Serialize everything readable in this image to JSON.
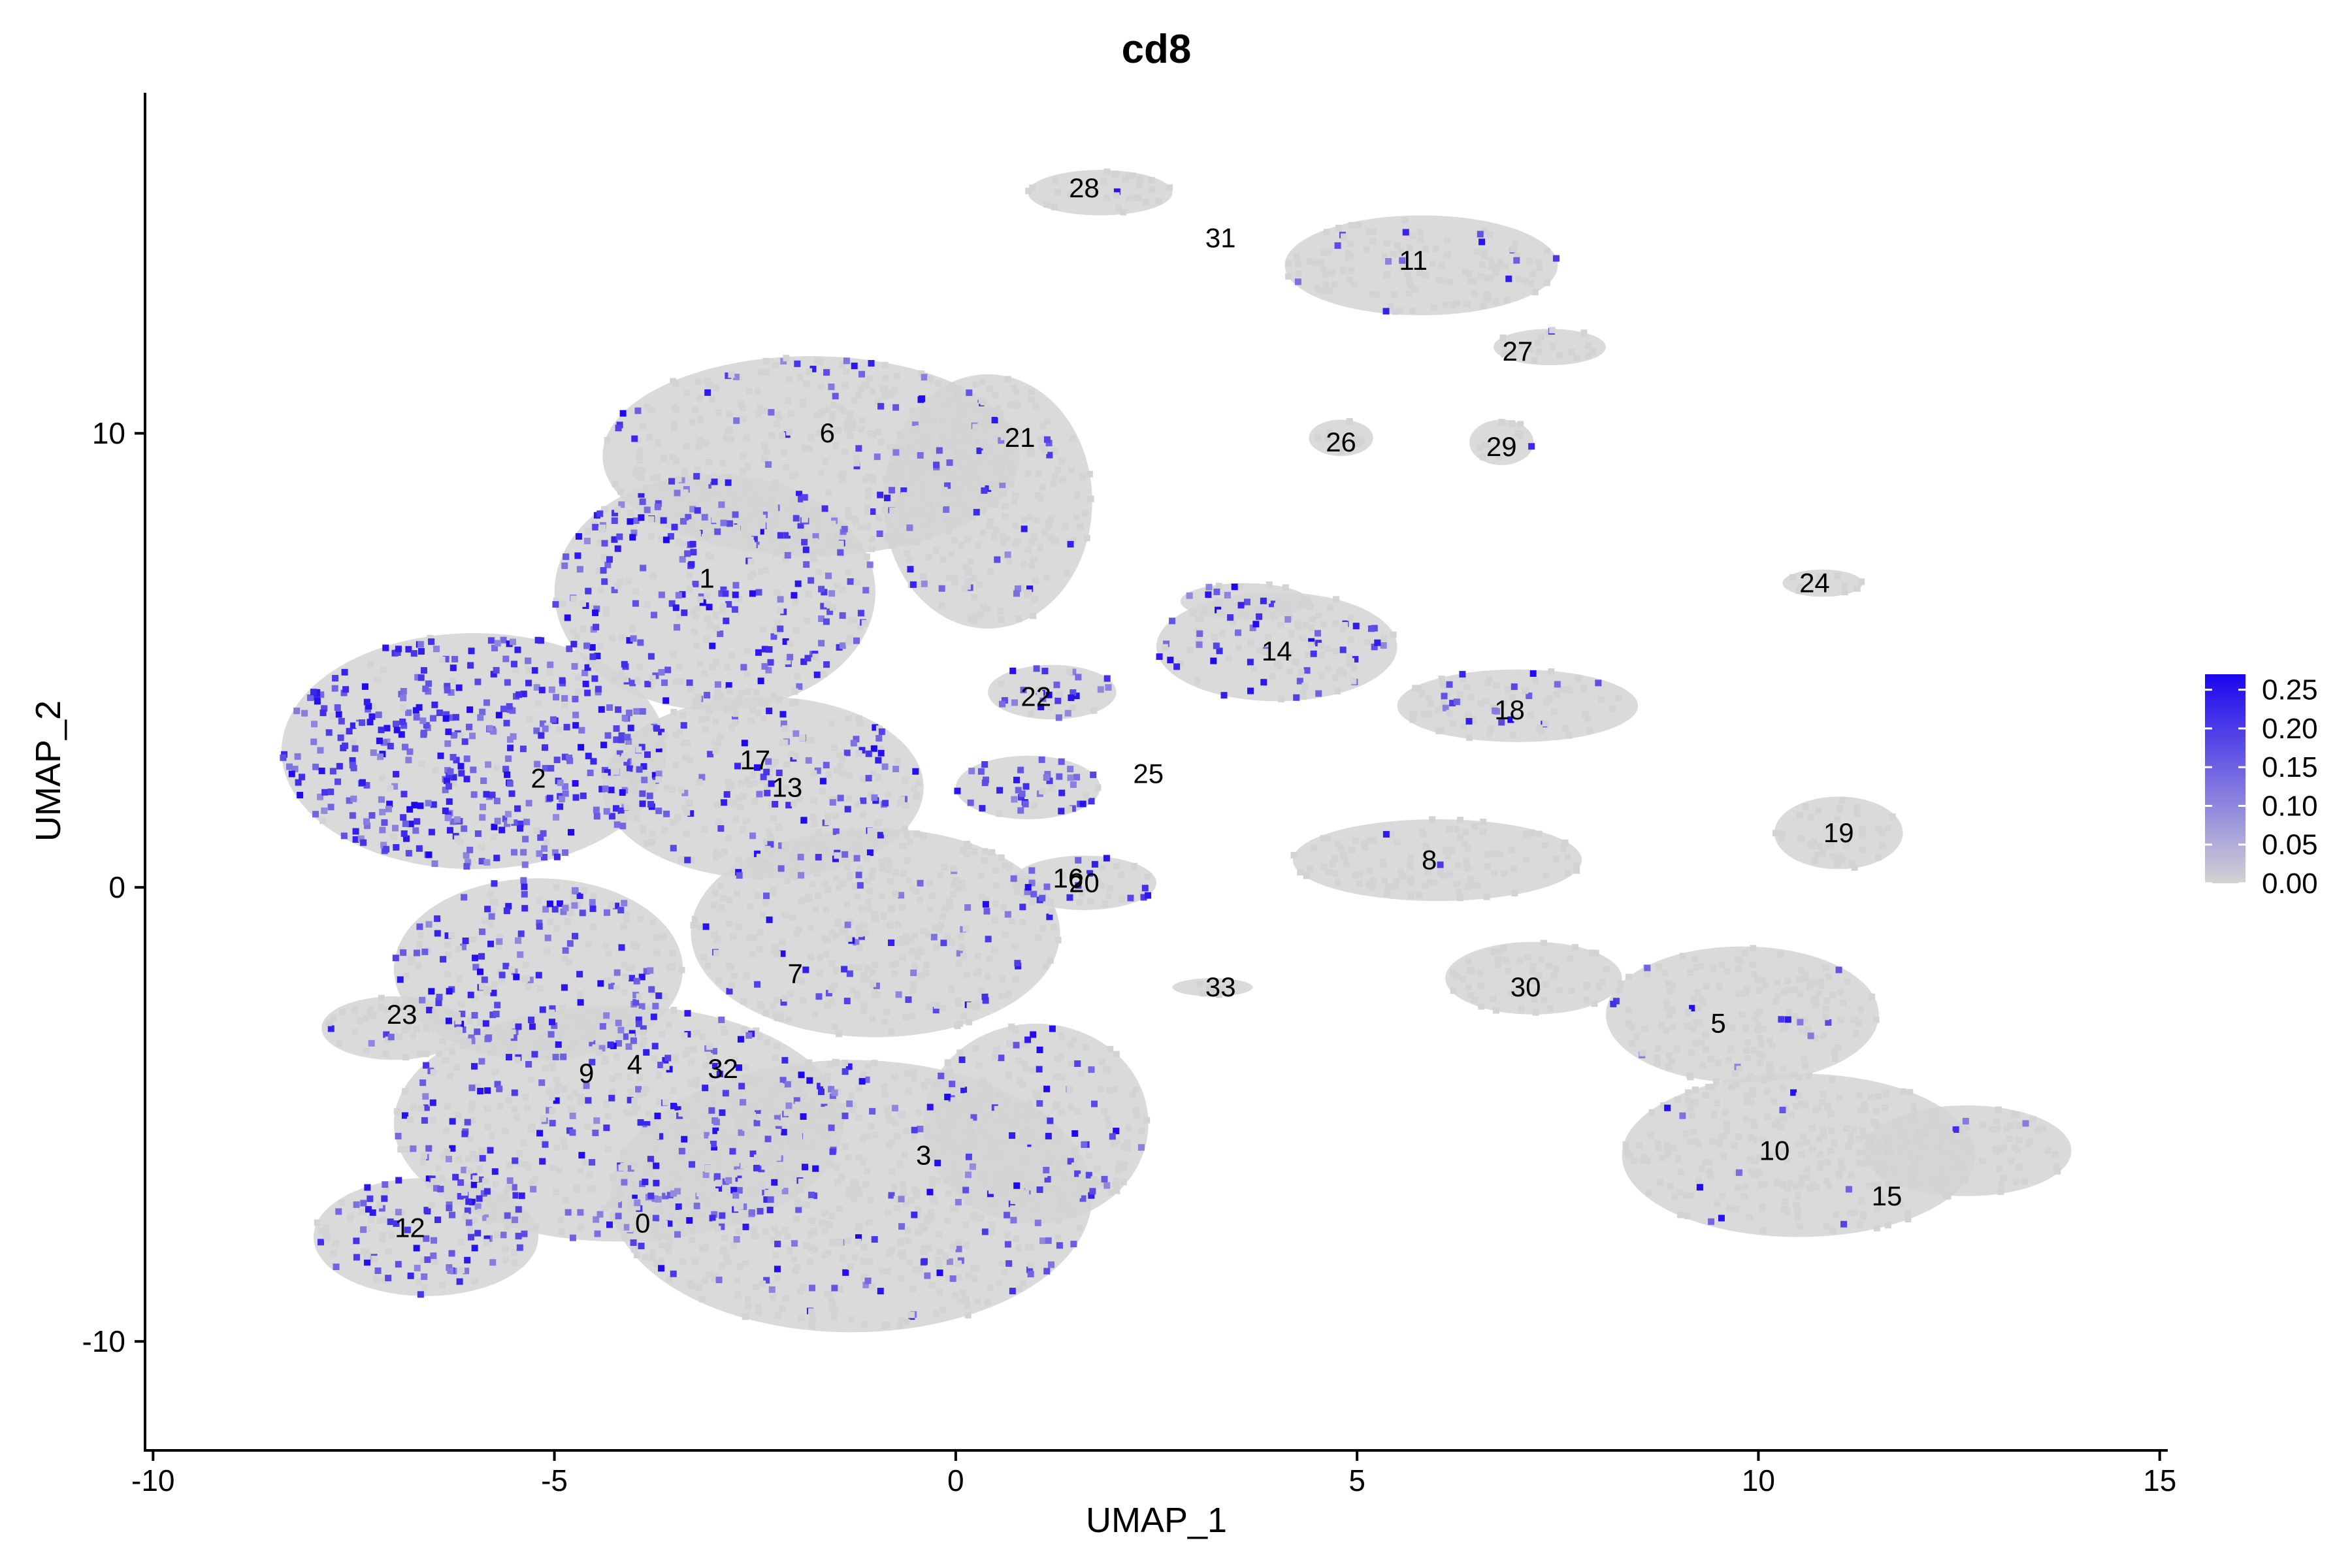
{
  "chart_data": {
    "type": "scatter",
    "title": "cd8",
    "xlabel": "UMAP_1",
    "ylabel": "UMAP_2",
    "xlim": [
      -10.1,
      15.1
    ],
    "ylim": [
      -12.4,
      17.5
    ],
    "xticks": [
      -10,
      -5,
      0,
      5,
      10,
      15
    ],
    "xtick_labels": [
      "-10",
      "-5",
      "0",
      "5",
      "10",
      "15"
    ],
    "yticks": [
      -10,
      0,
      10
    ],
    "ytick_labels": [
      "-10",
      "0",
      "10"
    ],
    "grid": false,
    "legend": {
      "placement": "right",
      "min": 0.0,
      "max": 0.27,
      "ticks": [
        0.25,
        0.2,
        0.15,
        0.1,
        0.05,
        0.0
      ],
      "tick_labels": [
        "0.25",
        "0.20",
        "0.15",
        "0.10",
        "0.05",
        "0.00"
      ],
      "low_color": "#d3d3d3",
      "high_color": "#1c06ef"
    },
    "cluster_labels": [
      {
        "label": "28",
        "x": 1.6,
        "y": 15.4
      },
      {
        "label": "31",
        "x": 3.3,
        "y": 14.3
      },
      {
        "label": "11",
        "x": 5.7,
        "y": 13.8
      },
      {
        "label": "27",
        "x": 7.0,
        "y": 11.8
      },
      {
        "label": "26",
        "x": 4.8,
        "y": 9.8
      },
      {
        "label": "29",
        "x": 6.8,
        "y": 9.7
      },
      {
        "label": "6",
        "x": -1.6,
        "y": 10.0
      },
      {
        "label": "21",
        "x": 0.8,
        "y": 9.9
      },
      {
        "label": "1",
        "x": -3.1,
        "y": 6.8
      },
      {
        "label": "24",
        "x": 10.7,
        "y": 6.7
      },
      {
        "label": "14",
        "x": 4.0,
        "y": 5.2
      },
      {
        "label": "22",
        "x": 1.0,
        "y": 4.2
      },
      {
        "label": "18",
        "x": 6.9,
        "y": 3.9
      },
      {
        "label": "17",
        "x": -2.5,
        "y": 2.8
      },
      {
        "label": "2",
        "x": -5.2,
        "y": 2.4
      },
      {
        "label": "13",
        "x": -2.1,
        "y": 2.2
      },
      {
        "label": "25",
        "x": 2.4,
        "y": 2.5
      },
      {
        "label": "19",
        "x": 11.0,
        "y": 1.2
      },
      {
        "label": "16",
        "x": 1.4,
        "y": 0.2
      },
      {
        "label": "20",
        "x": 1.6,
        "y": 0.1
      },
      {
        "label": "8",
        "x": 5.9,
        "y": 0.6
      },
      {
        "label": "7",
        "x": -2.0,
        "y": -1.9
      },
      {
        "label": "33",
        "x": 3.3,
        "y": -2.2
      },
      {
        "label": "30",
        "x": 7.1,
        "y": -2.2
      },
      {
        "label": "23",
        "x": -6.9,
        "y": -2.8
      },
      {
        "label": "5",
        "x": 9.5,
        "y": -3.0
      },
      {
        "label": "9",
        "x": -4.6,
        "y": -4.1
      },
      {
        "label": "4",
        "x": -4.0,
        "y": -3.9
      },
      {
        "label": "32",
        "x": -2.9,
        "y": -4.0
      },
      {
        "label": "3",
        "x": -0.4,
        "y": -5.9
      },
      {
        "label": "10",
        "x": 10.2,
        "y": -5.8
      },
      {
        "label": "15",
        "x": 11.6,
        "y": -6.8
      },
      {
        "label": "12",
        "x": -6.8,
        "y": -7.5
      },
      {
        "label": "0",
        "x": -3.9,
        "y": -7.4
      }
    ],
    "regions": [
      {
        "cx": -6.0,
        "cy": 3.0,
        "rx": 2.4,
        "ry": 2.6,
        "expr": 0.9
      },
      {
        "cx": -3.0,
        "cy": 6.5,
        "rx": 2.0,
        "ry": 2.6,
        "expr": 0.5
      },
      {
        "cx": -1.8,
        "cy": 9.5,
        "rx": 2.6,
        "ry": 2.2,
        "expr": 0.15
      },
      {
        "cx": 0.4,
        "cy": 8.5,
        "rx": 1.3,
        "ry": 2.8,
        "expr": 0.08
      },
      {
        "cx": -2.4,
        "cy": 2.2,
        "rx": 2.0,
        "ry": 2.0,
        "expr": 0.3
      },
      {
        "cx": -1.0,
        "cy": -1.0,
        "rx": 2.3,
        "ry": 2.3,
        "expr": 0.15
      },
      {
        "cx": -5.2,
        "cy": -1.8,
        "rx": 1.8,
        "ry": 2.0,
        "expr": 0.45
      },
      {
        "cx": -4.2,
        "cy": -5.2,
        "rx": 2.8,
        "ry": 2.6,
        "expr": 0.35
      },
      {
        "cx": -6.6,
        "cy": -7.7,
        "rx": 1.4,
        "ry": 1.3,
        "expr": 0.55
      },
      {
        "cx": -1.3,
        "cy": -6.8,
        "rx": 3.0,
        "ry": 3.0,
        "expr": 0.2
      },
      {
        "cx": 1.0,
        "cy": -5.2,
        "rx": 1.4,
        "ry": 2.2,
        "expr": 0.15
      },
      {
        "cx": -7.0,
        "cy": -3.1,
        "rx": 0.9,
        "ry": 0.7,
        "expr": 0.1
      },
      {
        "cx": 1.8,
        "cy": 15.3,
        "rx": 0.9,
        "ry": 0.5,
        "expr": 0.05
      },
      {
        "cx": 5.8,
        "cy": 13.7,
        "rx": 1.7,
        "ry": 1.1,
        "expr": 0.08
      },
      {
        "cx": 7.4,
        "cy": 11.9,
        "rx": 0.7,
        "ry": 0.4,
        "expr": 0.03
      },
      {
        "cx": 4.8,
        "cy": 9.9,
        "rx": 0.4,
        "ry": 0.4,
        "expr": 0.1
      },
      {
        "cx": 6.8,
        "cy": 9.8,
        "rx": 0.4,
        "ry": 0.5,
        "expr": 0.05
      },
      {
        "cx": 1.2,
        "cy": 4.3,
        "rx": 0.8,
        "ry": 0.6,
        "expr": 0.6
      },
      {
        "cx": 0.9,
        "cy": 2.2,
        "rx": 0.9,
        "ry": 0.7,
        "expr": 0.85
      },
      {
        "cx": 3.6,
        "cy": 6.3,
        "rx": 0.8,
        "ry": 0.4,
        "expr": 0.8
      },
      {
        "cx": 4.0,
        "cy": 5.3,
        "rx": 1.5,
        "ry": 1.2,
        "expr": 0.3
      },
      {
        "cx": 7.0,
        "cy": 4.0,
        "rx": 1.5,
        "ry": 0.8,
        "expr": 0.25
      },
      {
        "cx": 10.8,
        "cy": 6.7,
        "rx": 0.5,
        "ry": 0.3,
        "expr": 0.05
      },
      {
        "cx": 1.6,
        "cy": 0.1,
        "rx": 0.9,
        "ry": 0.6,
        "expr": 0.4
      },
      {
        "cx": 6.0,
        "cy": 0.6,
        "rx": 1.8,
        "ry": 0.9,
        "expr": 0.03
      },
      {
        "cx": 11.0,
        "cy": 1.2,
        "rx": 0.8,
        "ry": 0.8,
        "expr": 0.02
      },
      {
        "cx": 7.2,
        "cy": -2.0,
        "rx": 1.1,
        "ry": 0.8,
        "expr": 0.05
      },
      {
        "cx": 9.8,
        "cy": -2.8,
        "rx": 1.7,
        "ry": 1.5,
        "expr": 0.04
      },
      {
        "cx": 10.5,
        "cy": -5.9,
        "rx": 2.2,
        "ry": 1.8,
        "expr": 0.05
      },
      {
        "cx": 12.6,
        "cy": -5.8,
        "rx": 1.3,
        "ry": 1.0,
        "expr": 0.03
      },
      {
        "cx": 3.2,
        "cy": -2.2,
        "rx": 0.5,
        "ry": 0.2,
        "expr": 0.05
      }
    ]
  }
}
